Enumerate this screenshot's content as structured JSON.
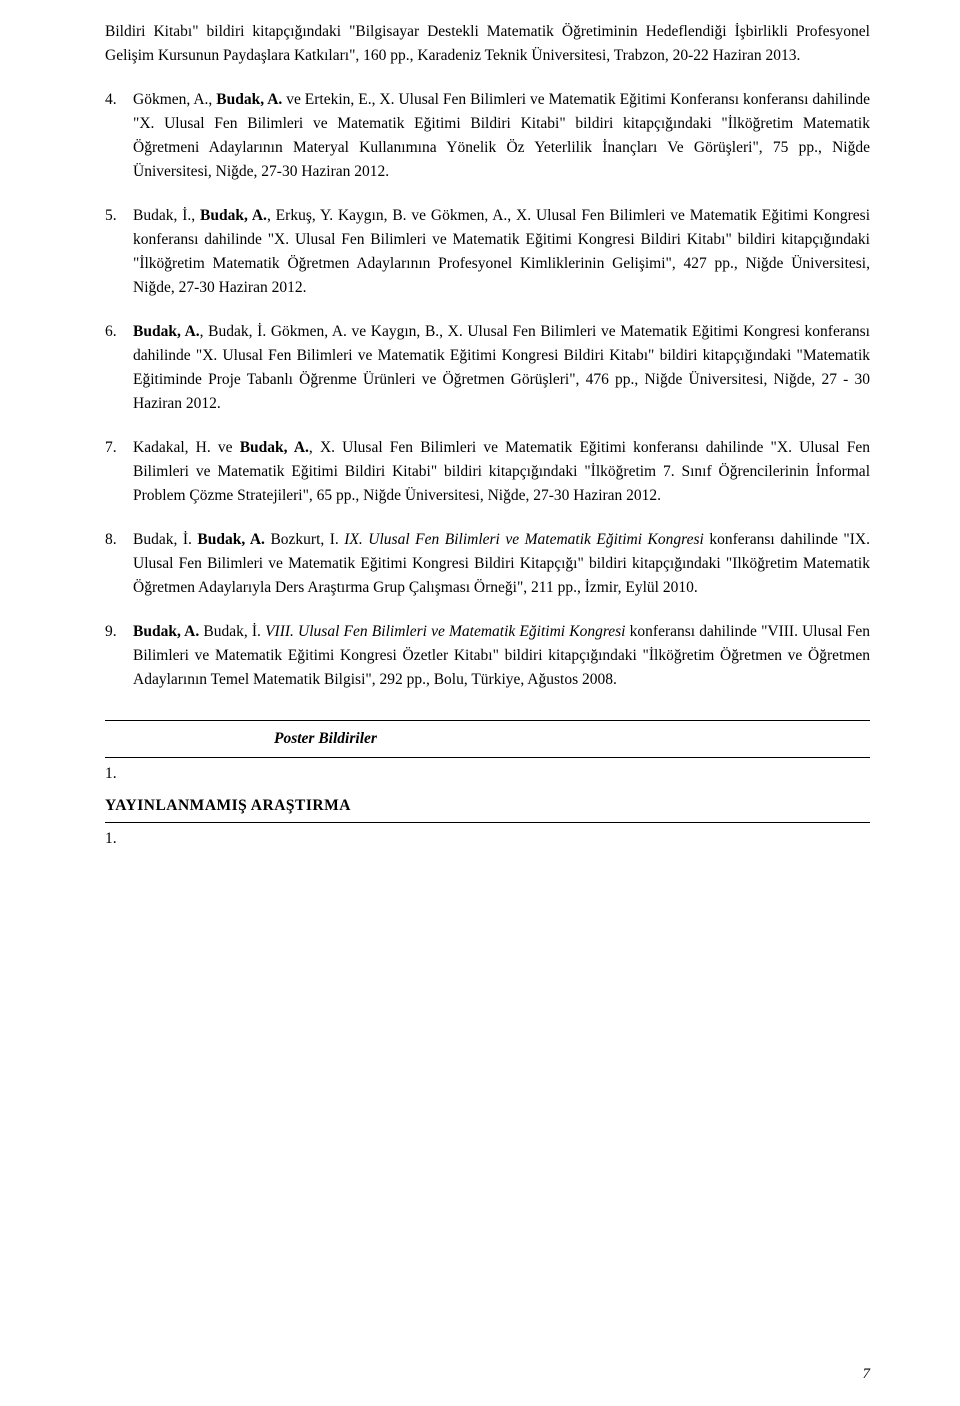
{
  "continuation": "Bildiri Kitabı\" bildiri kitapçığındaki \"Bilgisayar Destekli Matematik Öğretiminin Hedeflendiği İşbirlikli Profesyonel Gelişim Kursunun Paydaşlara Katkıları\", 160 pp., Karadeniz Teknik Üniversitesi, Trabzon, 20-22 Haziran 2013.",
  "refs": [
    {
      "pre": "Gökmen, A., ",
      "bold1": "Budak, A.",
      "mid1": " ve Ertekin, E., X. Ulusal Fen Bilimleri ve Matematik Eğitimi Konferansı konferansı dahilinde \"X. Ulusal Fen Bilimleri ve Matematik Eğitimi Bildiri Kitabi\" bildiri kitapçığındaki \"İlköğretim Matematik Öğretmeni Adaylarının Materyal Kullanımına Yönelik Öz Yeterlilik İnançları Ve Görüşleri\", 75 pp., Niğde Üniversitesi, Niğde, 27-30 Haziran 2012."
    },
    {
      "pre": "Budak, İ., ",
      "bold1": "Budak, A.",
      "mid1": ", Erkuş, Y. Kaygın, B. ve Gökmen, A., X. Ulusal Fen Bilimleri ve Matematik Eğitimi Kongresi konferansı dahilinde \"X. Ulusal Fen Bilimleri ve Matematik Eğitimi Kongresi Bildiri Kitabı\" bildiri kitapçığındaki \"İlköğretim Matematik Öğretmen Adaylarının Profesyonel Kimliklerinin Gelişimi\", 427 pp., Niğde Üniversitesi, Niğde, 27-30 Haziran 2012."
    },
    {
      "bold0": "Budak, A.",
      "mid0": ", Budak, İ. Gökmen, A. ve Kaygın, B., X. Ulusal Fen Bilimleri ve Matematik Eğitimi Kongresi konferansı dahilinde \"X. Ulusal Fen Bilimleri ve Matematik Eğitimi Kongresi Bildiri Kitabı\" bildiri kitapçığındaki \"Matematik Eğitiminde Proje Tabanlı Öğrenme Ürünleri ve Öğretmen Görüşleri\", 476 pp., Niğde Üniversitesi, Niğde, 27 - 30 Haziran 2012."
    },
    {
      "pre": "Kadakal, H. ve ",
      "bold1": "Budak, A.",
      "mid1": ", X. Ulusal Fen Bilimleri ve Matematik Eğitimi konferansı dahilinde \"X. Ulusal Fen Bilimleri ve Matematik Eğitimi Bildiri Kitabi\" bildiri kitapçığındaki \"İlköğretim 7. Sınıf Öğrencilerinin İnformal Problem Çözme Stratejileri\", 65 pp., Niğde Üniversitesi, Niğde, 27-30 Haziran 2012."
    },
    {
      "pre": "Budak, İ. ",
      "bold1": "Budak, A.",
      "mid1": " Bozkurt, I. ",
      "ital1": "IX. Ulusal Fen Bilimleri ve Matematik Eğitimi Kongresi",
      "post1": " konferansı dahilinde \"IX. Ulusal Fen Bilimleri ve Matematik Eğitimi Kongresi Bildiri Kitapçığı\" bildiri kitapçığındaki \"Ilköğretim Matematik Öğretmen Adaylarıyla Ders Araştırma Grup Çalışması Örneği\", 211 pp., İzmir, Eylül 2010."
    },
    {
      "bold0": "Budak, A.",
      "mid0": " Budak, İ. ",
      "ital0": "VIII. Ulusal Fen Bilimleri ve Matematik Eğitimi Kongresi",
      "post0": " konferansı dahilinde \"VIII. Ulusal Fen Bilimleri ve Matematik Eğitimi Kongresi Özetler Kitabı\" bildiri kitapçığındaki \"İlköğretim Öğretmen ve Öğretmen Adaylarının Temel Matematik Bilgisi\", 292 pp., Bolu, Türkiye, Ağustos 2008."
    }
  ],
  "poster_heading": "Poster Bildiriler",
  "poster_num": "1.",
  "unpub_heading": "YAYINLANMAMIŞ ARAŞTIRMA",
  "unpub_num": "1.",
  "page_num": "7"
}
